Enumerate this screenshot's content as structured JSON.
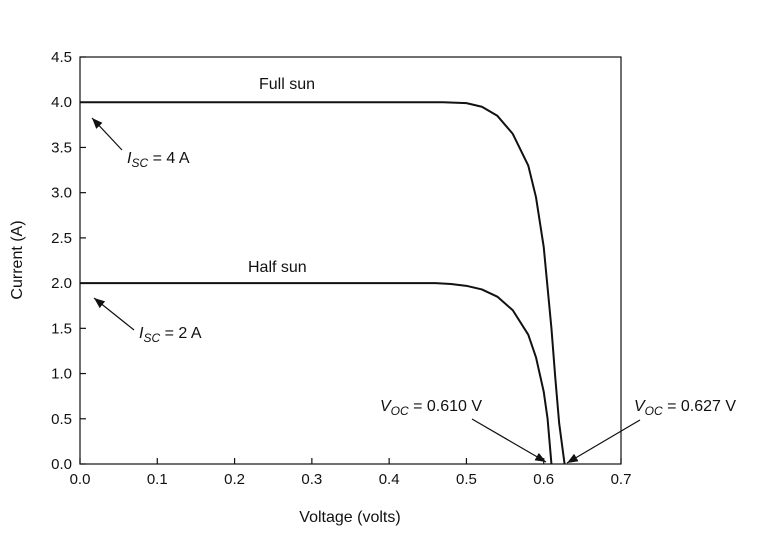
{
  "chart_data": {
    "type": "line",
    "title": "",
    "xlabel": "Voltage (volts)",
    "ylabel": "Current (A)",
    "xlim": [
      0,
      0.7
    ],
    "ylim": [
      0,
      4.5
    ],
    "xticks": [
      "0.0",
      "0.1",
      "0.2",
      "0.3",
      "0.4",
      "0.5",
      "0.6",
      "0.7"
    ],
    "yticks": [
      "0.0",
      "0.5",
      "1.0",
      "1.5",
      "2.0",
      "2.5",
      "3.0",
      "3.5",
      "4.0",
      "4.5"
    ],
    "grid": false,
    "series": [
      {
        "name": "Full sun",
        "x": [
          0,
          0.1,
          0.2,
          0.3,
          0.4,
          0.45,
          0.47,
          0.5,
          0.52,
          0.54,
          0.56,
          0.58,
          0.59,
          0.6,
          0.61,
          0.615,
          0.62,
          0.627
        ],
        "y": [
          4.0,
          4.0,
          4.0,
          4.0,
          4.0,
          4.0,
          4.0,
          3.99,
          3.95,
          3.85,
          3.65,
          3.3,
          2.95,
          2.4,
          1.5,
          0.95,
          0.45,
          0
        ]
      },
      {
        "name": "Half sun",
        "x": [
          0,
          0.1,
          0.2,
          0.3,
          0.4,
          0.46,
          0.48,
          0.5,
          0.52,
          0.54,
          0.56,
          0.58,
          0.59,
          0.6,
          0.605,
          0.61
        ],
        "y": [
          2.0,
          2.0,
          2.0,
          2.0,
          2.0,
          2.0,
          1.99,
          1.97,
          1.93,
          1.85,
          1.7,
          1.43,
          1.18,
          0.8,
          0.5,
          0
        ]
      }
    ],
    "labels": {
      "full_sun": "Full sun",
      "half_sun": "Half sun",
      "isc_full": {
        "symbol": "I",
        "sub": "SC",
        "rest": " = 4 A"
      },
      "isc_half": {
        "symbol": "I",
        "sub": "SC",
        "rest": " = 2 A"
      },
      "voc_half": {
        "symbol": "V",
        "sub": "OC",
        "rest": " = 0.610 V"
      },
      "voc_full": {
        "symbol": "V",
        "sub": "OC",
        "rest": " = 0.627 V"
      }
    }
  }
}
